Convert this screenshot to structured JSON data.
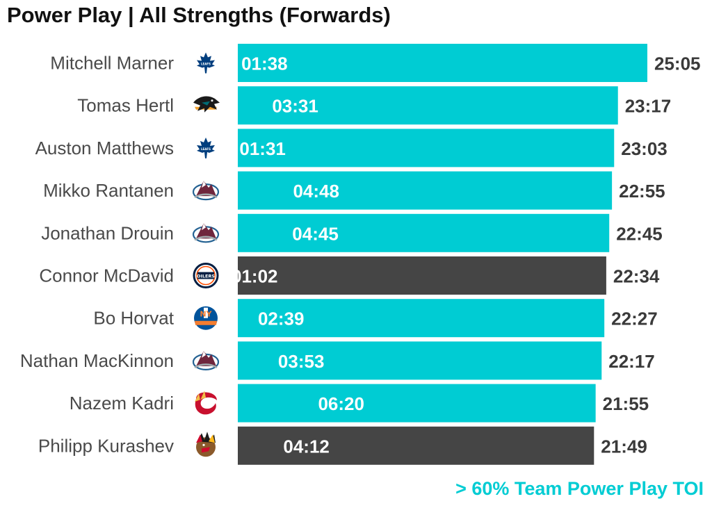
{
  "chart_data": {
    "type": "bar",
    "orientation": "horizontal",
    "title": "Power Play | All Strengths (Forwards)",
    "xlabel": "",
    "ylabel": "",
    "categories": [
      "Mitchell Marner",
      "Tomas Hertl",
      "Auston Matthews",
      "Mikko Rantanen",
      "Jonathan Drouin",
      "Connor McDavid",
      "Bo Horvat",
      "Nathan MacKinnon",
      "Nazem Kadri",
      "Philipp Kurashev"
    ],
    "teams": [
      "TOR",
      "SJS",
      "TOR",
      "COL",
      "COL",
      "EDM",
      "NYI",
      "COL",
      "CGY",
      "CHI"
    ],
    "team_logo_icons": [
      "maple-leafs-logo-icon",
      "sharks-logo-icon",
      "maple-leafs-logo-icon",
      "avalanche-logo-icon",
      "avalanche-logo-icon",
      "oilers-logo-icon",
      "islanders-logo-icon",
      "avalanche-logo-icon",
      "flames-logo-icon",
      "blackhawks-logo-icon"
    ],
    "total_labels": [
      "25:05",
      "23:17",
      "23:03",
      "22:55",
      "22:45",
      "22:34",
      "22:27",
      "22:17",
      "21:55",
      "21:49"
    ],
    "values": [
      25.0833,
      23.2833,
      23.05,
      22.9167,
      22.75,
      22.5667,
      22.45,
      22.2833,
      21.9167,
      21.8167
    ],
    "pp_labels": [
      "01:38",
      "03:31",
      "01:31",
      "04:48",
      "04:45",
      "01:02",
      "02:39",
      "03:53",
      "06:20",
      "04:12"
    ],
    "pp_values": [
      1.6333,
      3.5167,
      1.5167,
      4.8,
      4.75,
      1.0333,
      2.65,
      3.8833,
      6.3333,
      4.2
    ],
    "above_60pct_team_pp_toi": [
      true,
      true,
      true,
      true,
      true,
      false,
      true,
      true,
      true,
      false
    ],
    "legend_text": "> 60% Team Power Play TOI",
    "colors": {
      "highlight": "#00CCD3",
      "default": "#454545",
      "bar_label": "#ffffff",
      "total_label": "#3a3a3a",
      "player_label": "#4a4a4a",
      "legend": "#00CCD3"
    },
    "xlim": [
      0,
      25.0833
    ],
    "grid": false,
    "legend_position": "bottom-right"
  }
}
